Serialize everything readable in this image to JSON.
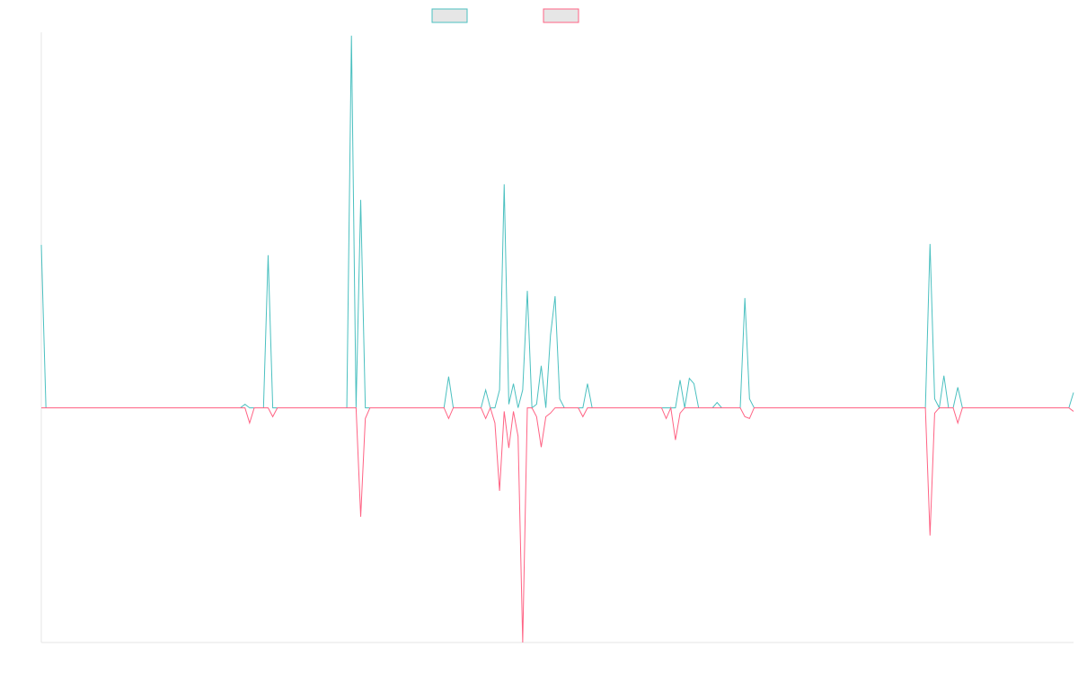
{
  "chart_data": {
    "type": "line",
    "title": "",
    "xlabel": "",
    "ylabel": "",
    "grid": false,
    "legend_position": "top",
    "x": [
      0,
      1,
      2,
      3,
      4,
      5,
      6,
      7,
      8,
      9,
      10,
      11,
      12,
      13,
      14,
      15,
      16,
      17,
      18,
      19,
      20,
      21,
      22,
      23,
      24,
      25,
      26,
      27,
      28,
      29,
      30,
      31,
      32,
      33,
      34,
      35,
      36,
      37,
      38,
      39,
      40,
      41,
      42,
      43,
      44,
      45,
      46,
      47,
      48,
      49,
      50,
      51,
      52,
      53,
      54,
      55,
      56,
      57,
      58,
      59,
      60,
      61,
      62,
      63,
      64,
      65,
      66,
      67,
      68,
      69,
      70,
      71,
      72,
      73,
      74,
      75,
      76,
      77,
      78,
      79,
      80,
      81,
      82,
      83,
      84,
      85,
      86,
      87,
      88,
      89,
      90,
      91,
      92,
      93,
      94,
      95,
      96,
      97,
      98,
      99,
      100,
      101,
      102,
      103,
      104,
      105,
      106,
      107,
      108,
      109,
      110,
      111,
      112,
      113,
      114,
      115,
      116,
      117,
      118,
      119,
      120,
      121,
      122,
      123,
      124,
      125,
      126,
      127,
      128,
      129,
      130,
      131,
      132,
      133,
      134,
      135,
      136,
      137,
      138,
      139,
      140,
      141,
      142,
      143,
      144,
      145,
      146,
      147,
      148,
      149,
      150,
      151,
      152,
      153,
      154,
      155,
      156,
      157,
      158,
      159,
      160,
      161,
      162,
      163,
      164,
      165,
      166,
      167,
      168,
      169,
      170,
      171,
      172,
      173,
      174,
      175,
      176,
      177,
      178,
      179,
      180,
      181,
      182,
      183,
      184,
      185,
      186,
      187,
      188,
      189,
      190,
      191,
      192,
      193,
      194,
      195,
      196,
      197,
      198,
      199,
      200,
      201,
      202,
      203,
      204,
      205,
      206,
      207,
      208,
      209,
      210,
      211,
      212,
      213,
      214,
      215,
      216,
      217,
      218,
      219,
      220,
      221,
      222,
      223
    ],
    "series": [
      {
        "name": "",
        "color": "#4bc0c0",
        "values": [
          0.6942,
          0,
          0,
          0,
          0,
          0,
          0,
          0,
          0,
          0,
          0,
          0,
          0,
          0,
          0,
          0,
          0,
          0,
          0,
          0,
          0,
          0,
          0,
          0,
          0,
          0,
          0,
          0,
          0,
          0,
          0,
          0,
          0,
          0,
          0,
          0,
          0,
          0,
          0,
          0,
          0,
          0,
          0,
          0,
          0.0152,
          0,
          0,
          0,
          0,
          0.6502,
          0,
          0,
          0,
          0,
          0,
          0,
          0,
          0,
          0,
          0,
          0,
          0,
          0,
          0,
          0,
          0,
          0,
          1.5856,
          0,
          0.8859,
          0,
          0,
          0,
          0,
          0,
          0,
          0,
          0,
          0,
          0,
          0,
          0,
          0,
          0,
          0,
          0,
          0,
          0,
          0.1331,
          0,
          0,
          0,
          0,
          0,
          0,
          0,
          0.0761,
          0,
          0,
          0.0761,
          0.9524,
          0.0152,
          0.1027,
          0,
          0.0761,
          0.4983,
          0,
          0.0152,
          0.1787,
          0,
          0.308,
          0.4755,
          0.038,
          0,
          0,
          0,
          0,
          0,
          0.1027,
          0,
          0,
          0,
          0,
          0,
          0,
          0,
          0,
          0,
          0,
          0,
          0,
          0,
          0,
          0,
          0,
          0,
          0,
          0,
          0.1179,
          0,
          0.1255,
          0.1027,
          0,
          0,
          0,
          0,
          0.0228,
          0,
          0,
          0,
          0,
          0,
          0.4679,
          0.038,
          0,
          0,
          0,
          0,
          0,
          0,
          0,
          0,
          0,
          0,
          0,
          0,
          0,
          0,
          0,
          0,
          0,
          0,
          0,
          0,
          0,
          0,
          0,
          0,
          0,
          0,
          0,
          0,
          0,
          0,
          0,
          0,
          0,
          0,
          0,
          0,
          0,
          0,
          0.6981,
          0.038,
          0,
          0.1369,
          0,
          0,
          0.0875,
          0,
          0,
          0,
          0,
          0,
          0,
          0,
          0,
          0,
          0,
          0,
          0,
          0,
          0,
          0,
          0,
          0,
          0,
          0,
          0,
          0,
          0,
          0,
          0,
          0.0647
        ]
      },
      {
        "name": "",
        "color": "#ff6384",
        "values": [
          0,
          0,
          0,
          0,
          0,
          0,
          0,
          0,
          0,
          0,
          0,
          0,
          0,
          0,
          0,
          0,
          0,
          0,
          0,
          0,
          0,
          0,
          0,
          0,
          0,
          0,
          0,
          0,
          0,
          0,
          0,
          0,
          0,
          0,
          0,
          0,
          0,
          0,
          0,
          0,
          0,
          0,
          0,
          0,
          0,
          -0.0647,
          0,
          0,
          0,
          0,
          -0.038,
          0,
          0,
          0,
          0,
          0,
          0,
          0,
          0,
          0,
          0,
          0,
          0,
          0,
          0,
          0,
          0,
          0,
          0,
          -0.464,
          -0.0456,
          0,
          0,
          0,
          0,
          0,
          0,
          0,
          0,
          0,
          0,
          0,
          0,
          0,
          0,
          0,
          0,
          0,
          -0.0456,
          0,
          0,
          0,
          0,
          0,
          0,
          0,
          -0.0456,
          0,
          -0.0647,
          -0.3536,
          -0.0152,
          -0.1712,
          -0.0152,
          -0.1217,
          -1.0,
          0,
          0,
          -0.038,
          -0.1674,
          -0.038,
          -0.0228,
          0,
          0,
          0,
          0,
          0,
          0,
          -0.038,
          0,
          0,
          0,
          0,
          0,
          0,
          0,
          0,
          0,
          0,
          0,
          0,
          0,
          0,
          0,
          0,
          0,
          -0.0456,
          0,
          -0.1369,
          -0.0228,
          0,
          0,
          0,
          0,
          0,
          0,
          0,
          0,
          0,
          0,
          0,
          0,
          0,
          -0.038,
          -0.0456,
          0,
          0,
          0,
          0,
          0,
          0,
          0,
          0,
          0,
          0,
          0,
          0,
          0,
          0,
          0,
          0,
          0,
          0,
          0,
          0,
          0,
          0,
          0,
          0,
          0,
          0,
          0,
          0,
          0,
          0,
          0,
          0,
          0,
          0,
          0,
          0,
          0,
          0,
          -0.5439,
          -0.0228,
          0,
          0,
          0,
          0,
          -0.0647,
          0,
          0,
          0,
          0,
          0,
          0,
          0,
          0,
          0,
          0,
          0,
          0,
          0,
          0,
          0,
          0,
          0,
          0,
          0,
          0,
          0,
          0,
          0,
          0,
          -0.0152
        ]
      }
    ],
    "ylim": [
      -1.0,
      1.6
    ],
    "xlim": [
      0,
      223
    ]
  }
}
